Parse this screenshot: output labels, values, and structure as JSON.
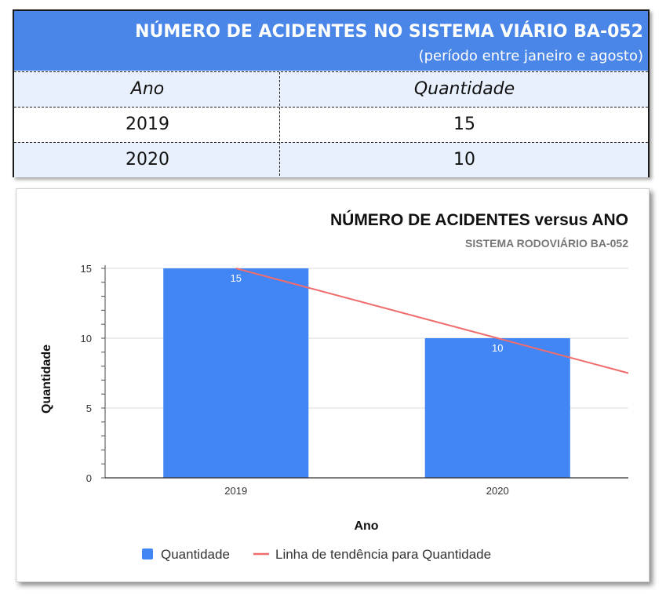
{
  "table": {
    "title": "NÚMERO DE ACIDENTES NO SISTEMA VIÁRIO BA-052",
    "subtitle": "(período entre janeiro e agosto)",
    "headers": [
      "Ano",
      "Quantidade"
    ],
    "rows": [
      [
        "2019",
        "15"
      ],
      [
        "2020",
        "10"
      ]
    ],
    "header_color": "#4a86e8",
    "band_color": "#e8f0fe"
  },
  "chart_data": {
    "type": "bar",
    "title": "NÚMERO DE ACIDENTES versus ANO",
    "subtitle": "SISTEMA RODOVIÁRIO BA-052",
    "categories": [
      "2019",
      "2020"
    ],
    "series": [
      {
        "name": "Quantidade",
        "values": [
          15,
          10
        ],
        "color": "#4285f4"
      }
    ],
    "trendline": {
      "name": "Linha de tendência para Quantidade",
      "type": "linear",
      "color": "#ef6d6d"
    },
    "data_labels": [
      "15",
      "10"
    ],
    "xlabel": "Ano",
    "ylabel": "Quantidade",
    "ylim": [
      0,
      15
    ],
    "yticks": [
      0,
      5,
      10,
      15
    ],
    "ytick_labels": [
      "0",
      "5",
      "10",
      "15"
    ],
    "grid": true,
    "legend": "bottom"
  }
}
